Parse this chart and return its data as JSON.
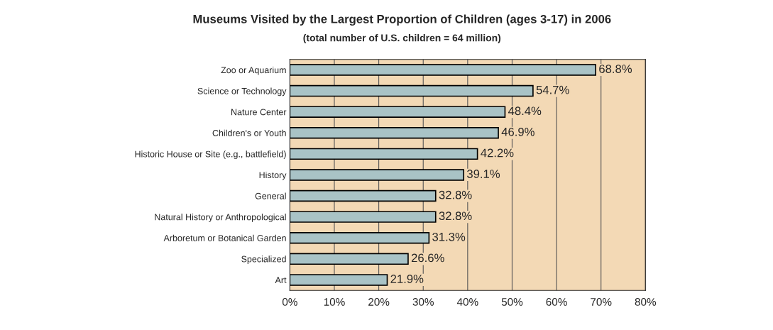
{
  "chart_data": {
    "type": "bar",
    "orientation": "horizontal",
    "title": "Museums Visited by the Largest Proportion of Children (ages 3-17) in 2006",
    "subtitle": "(total number of U.S. children = 64 million)",
    "categories": [
      "Zoo or Aquarium",
      "Science or Technology",
      "Nature Center",
      "Children's or Youth",
      "Historic House or Site (e.g., battlefield)",
      "History",
      "General",
      "Natural History or Anthropological",
      "Arboretum or Botanical Garden",
      "Specialized",
      "Art"
    ],
    "values": [
      68.8,
      54.7,
      48.4,
      46.9,
      42.2,
      39.1,
      32.8,
      32.8,
      31.3,
      26.6,
      21.9
    ],
    "value_labels": [
      "68.8%",
      "54.7%",
      "48.4%",
      "46.9%",
      "42.2%",
      "39.1%",
      "32.8%",
      "32.8%",
      "31.3%",
      "26.6%",
      "21.9%"
    ],
    "color": "#a9c3c6",
    "xlim": [
      0,
      80
    ],
    "xticks": [
      {
        "value": 0,
        "label": "0%"
      },
      {
        "value": 10,
        "label": "10%"
      },
      {
        "value": 20,
        "label": "20%"
      },
      {
        "value": 30,
        "label": "30%"
      },
      {
        "value": 40,
        "label": "40%"
      },
      {
        "value": 50,
        "label": "50%"
      },
      {
        "value": 60,
        "label": "60%"
      },
      {
        "value": 70,
        "label": "70%"
      },
      {
        "value": 80,
        "label": "80%"
      }
    ],
    "grid": "x"
  }
}
